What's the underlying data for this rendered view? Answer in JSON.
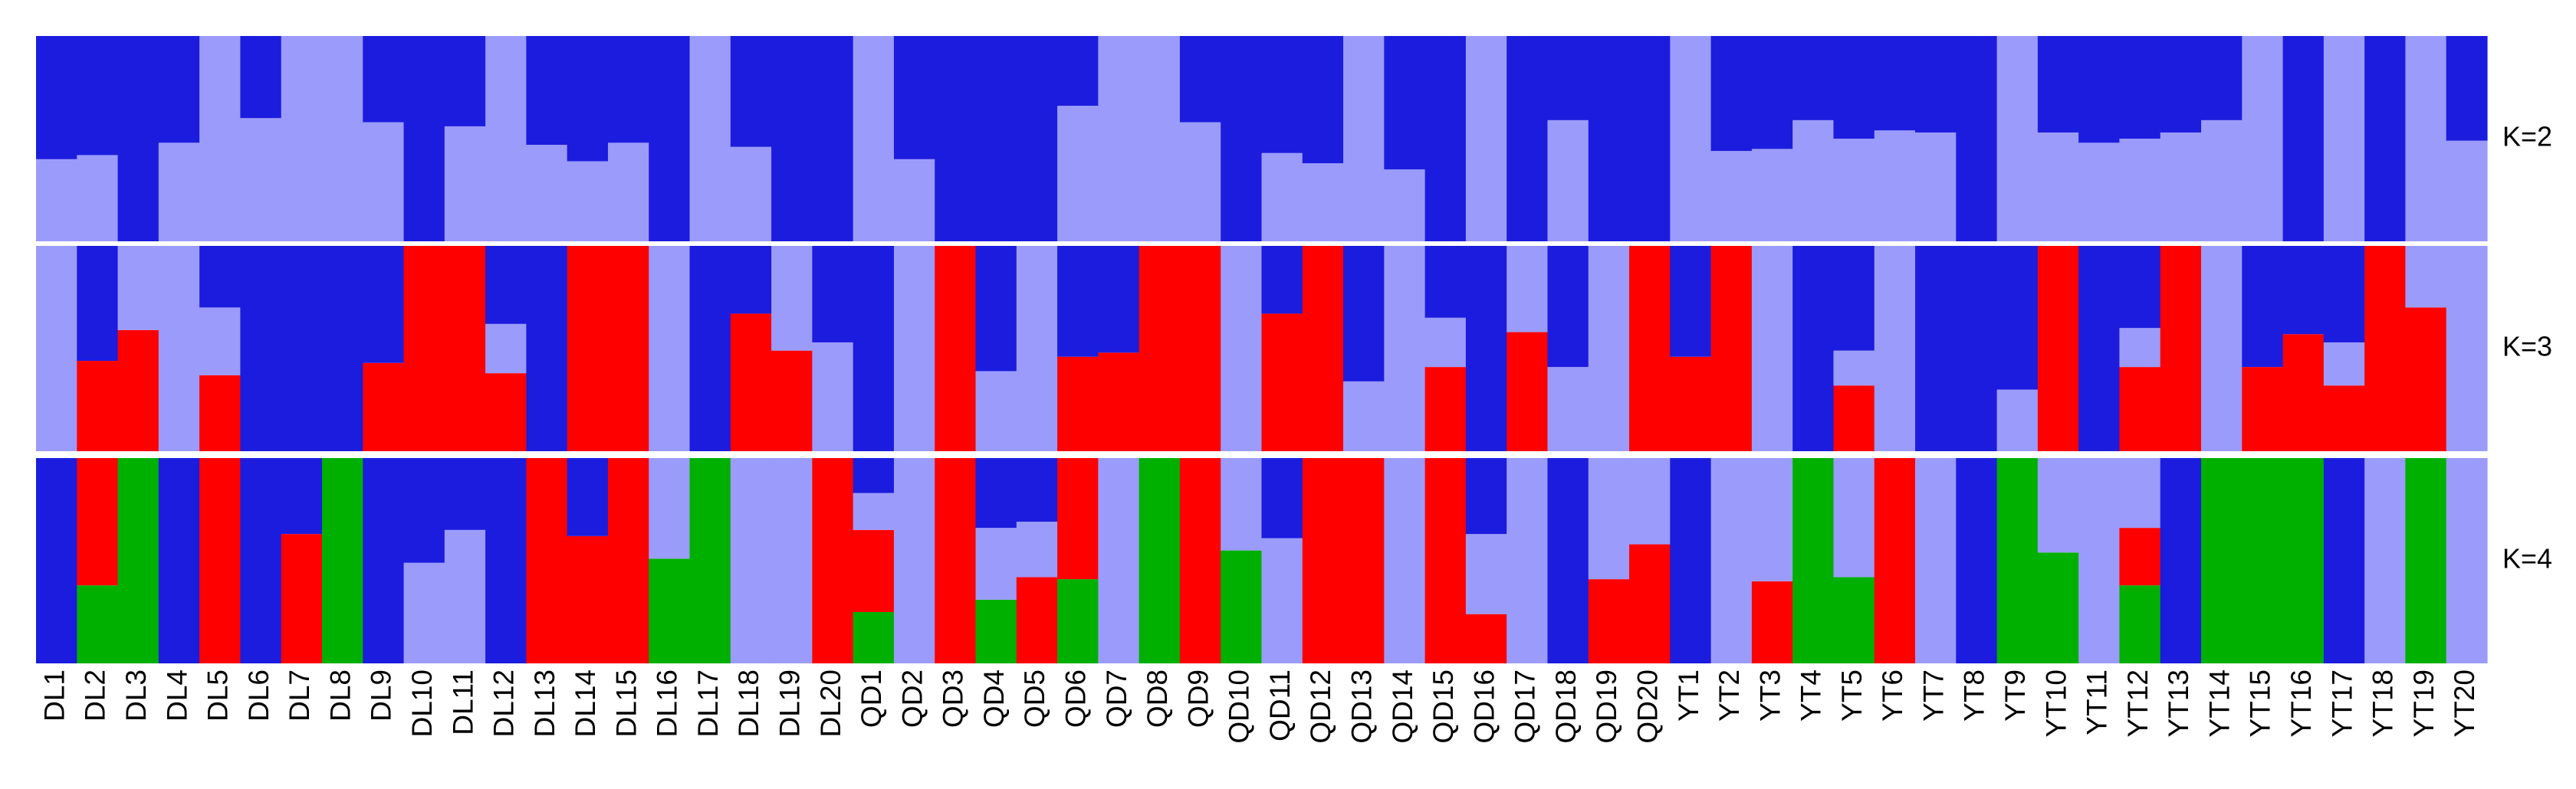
{
  "chart_data": {
    "type": "structure",
    "categories": [
      "DL1",
      "DL2",
      "DL3",
      "DL4",
      "DL5",
      "DL6",
      "DL7",
      "DL8",
      "DL9",
      "DL10",
      "DL11",
      "DL12",
      "DL13",
      "DL14",
      "DL15",
      "DL16",
      "DL17",
      "DL18",
      "DL19",
      "DL20",
      "QD1",
      "QD2",
      "QD3",
      "QD4",
      "QD5",
      "QD6",
      "QD7",
      "QD8",
      "QD9",
      "QD10",
      "QD11",
      "QD12",
      "QD13",
      "QD14",
      "QD15",
      "QD16",
      "QD17",
      "QD18",
      "QD19",
      "QD20",
      "YT1",
      "YT2",
      "YT3",
      "YT4",
      "YT5",
      "YT6",
      "YT7",
      "YT8",
      "YT9",
      "YT10",
      "YT11",
      "YT12",
      "YT13",
      "YT14",
      "YT15",
      "YT16",
      "YT17",
      "YT18",
      "YT19",
      "YT20"
    ],
    "ylim": [
      0,
      1
    ],
    "panels": [
      {
        "label": "K=2",
        "series": [
          {
            "color": "#9b9bfb",
            "values": [
              0.4,
              0.42,
              0,
              0.48,
              1,
              0.6,
              1,
              1,
              0.58,
              0,
              0.56,
              1,
              0.47,
              0.39,
              0.48,
              0,
              1,
              0.46,
              0,
              0,
              1,
              0.4,
              0,
              0,
              0,
              0.66,
              1,
              1,
              0.58,
              0,
              0.43,
              0.38,
              1,
              0.35,
              0,
              1,
              0,
              0.59,
              0,
              0,
              1,
              0.44,
              0.45,
              0.59,
              0.5,
              0.54,
              0.53,
              0,
              1,
              0.53,
              0.48,
              0.5,
              0.53,
              0.59,
              1,
              0,
              1,
              0,
              1,
              0.49
            ]
          },
          {
            "color": "#1c1cdf",
            "values": [
              0.6,
              0.58,
              1,
              0.52,
              0,
              0.4,
              0,
              0,
              0.42,
              1,
              0.44,
              0,
              0.53,
              0.61,
              0.52,
              1,
              0,
              0.54,
              1,
              1,
              0,
              0.6,
              1,
              1,
              1,
              0.34,
              0,
              0,
              0.42,
              1,
              0.57,
              0.62,
              0,
              0.65,
              1,
              0,
              1,
              0.41,
              1,
              1,
              0,
              0.56,
              0.55,
              0.41,
              0.5,
              0.46,
              0.47,
              1,
              0,
              0.47,
              0.52,
              0.5,
              0.47,
              0.41,
              0,
              1,
              0,
              1,
              0,
              0.51
            ]
          }
        ]
      },
      {
        "label": "K=3",
        "series": [
          {
            "color": "#fe0000",
            "values": [
              0,
              0.44,
              0.59,
              0,
              0.37,
              0,
              0,
              0,
              0.43,
              1,
              1,
              0.38,
              0,
              1,
              1,
              0,
              0,
              0.67,
              0.49,
              0,
              0,
              0,
              1,
              0,
              0,
              0.46,
              0.48,
              1,
              1,
              0,
              0.67,
              1,
              0,
              0,
              0.41,
              0,
              0.58,
              0,
              0,
              1,
              0.46,
              1,
              0,
              0,
              0.32,
              0,
              0,
              0,
              0,
              1,
              0,
              0.41,
              1,
              0,
              0.41,
              0.57,
              0.32,
              1,
              0.7,
              0
            ]
          },
          {
            "color": "#9b9bfb",
            "values": [
              1,
              0,
              0.41,
              1,
              0.33,
              0,
              0,
              0,
              0,
              0,
              0,
              0.24,
              0,
              0,
              0,
              1,
              0,
              0,
              0.51,
              0.53,
              0,
              1,
              0,
              0.39,
              1,
              0,
              0,
              0,
              0,
              1,
              0,
              0,
              0.34,
              1,
              0.24,
              0,
              0.42,
              0.41,
              1,
              0,
              0,
              0,
              1,
              0,
              0.17,
              1,
              0,
              0,
              0.3,
              0,
              0,
              0.19,
              0,
              1,
              0,
              0,
              0.21,
              0,
              0.3,
              1
            ]
          },
          {
            "color": "#1c1cdf",
            "values": [
              0,
              0.56,
              0,
              0,
              0.3,
              1,
              1,
              1,
              0.57,
              0,
              0,
              0.38,
              1,
              0,
              0,
              0,
              1,
              0.33,
              0,
              0.47,
              1,
              0,
              0,
              0.61,
              0,
              0.54,
              0.52,
              0,
              0,
              0,
              0.33,
              0,
              0.66,
              0,
              0.35,
              1,
              0,
              0.59,
              0,
              0,
              0.54,
              0,
              0,
              1,
              0.51,
              0,
              1,
              1,
              0.7,
              0,
              1,
              0.4,
              0,
              0,
              0.59,
              0.43,
              0.47,
              0,
              0,
              0
            ]
          }
        ]
      },
      {
        "label": "K=4",
        "series": [
          {
            "color": "#00b000",
            "values": [
              0,
              0.38,
              1,
              0,
              0,
              0,
              0,
              1,
              0,
              0,
              0,
              0,
              0,
              0,
              0,
              0.51,
              1,
              0,
              0,
              0,
              0.25,
              0,
              0,
              0.31,
              0,
              0.41,
              0,
              1,
              0,
              0.55,
              0,
              0,
              0,
              0,
              0,
              0,
              0,
              0,
              0,
              0,
              0,
              0,
              0,
              1,
              0.42,
              0,
              0,
              0,
              1,
              0.54,
              0,
              0.38,
              0,
              1,
              1,
              1,
              0,
              0,
              1,
              0
            ]
          },
          {
            "color": "#fe0000",
            "values": [
              0,
              0.62,
              0,
              0,
              1,
              0,
              0.63,
              0,
              0,
              0,
              0,
              0,
              1,
              0.62,
              1,
              0,
              0,
              0,
              0,
              1,
              0.4,
              0,
              1,
              0,
              0.42,
              0.59,
              0,
              0,
              1,
              0,
              0,
              1,
              1,
              0,
              1,
              0.24,
              0,
              0,
              0.41,
              0.58,
              0,
              0,
              0.4,
              0,
              0,
              1,
              0,
              0,
              0,
              0,
              0,
              0.28,
              0,
              0,
              0,
              0,
              0,
              0,
              0,
              0
            ]
          },
          {
            "color": "#9b9bfb",
            "values": [
              0,
              0,
              0,
              0,
              0,
              0,
              0,
              0,
              0,
              0.49,
              0.65,
              0,
              0,
              0,
              0,
              0.49,
              0,
              1,
              1,
              0,
              0.18,
              1,
              0,
              0.35,
              0.27,
              0,
              1,
              0,
              0,
              0.45,
              0.61,
              0,
              0,
              1,
              0,
              0.39,
              1,
              0,
              0.59,
              0.42,
              0,
              1,
              0.6,
              0,
              0.58,
              0,
              1,
              0,
              0,
              0.46,
              1,
              0.34,
              0,
              0,
              0,
              0,
              0,
              1,
              0,
              1
            ]
          },
          {
            "color": "#1c1cdf",
            "values": [
              1,
              0,
              0,
              1,
              0,
              1,
              0.37,
              0,
              1,
              0.51,
              0.35,
              1,
              0,
              0.38,
              0,
              0,
              0,
              0,
              0,
              0,
              0.17,
              0,
              0,
              0.34,
              0.31,
              0,
              0,
              0,
              0,
              0,
              0.39,
              0,
              0,
              0,
              0,
              0.37,
              0,
              1,
              0,
              0,
              1,
              0,
              0,
              0,
              0,
              0,
              0,
              1,
              0,
              0,
              0,
              0,
              1,
              0,
              0,
              0,
              1,
              0,
              0,
              0
            ]
          }
        ]
      }
    ]
  }
}
